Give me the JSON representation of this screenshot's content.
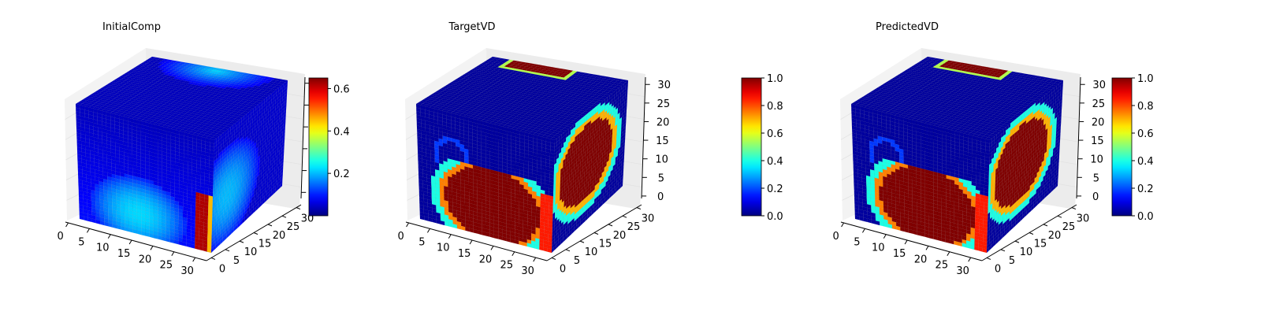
{
  "chart_data": [
    {
      "type": "voxel-3d",
      "title": "InitialComp",
      "xticks": [
        "0",
        "5",
        "10",
        "15",
        "20",
        "25",
        "30"
      ],
      "yticks": [
        "0",
        "5",
        "10",
        "15",
        "20",
        "25",
        "30"
      ],
      "colorbar": {
        "min": 0.0,
        "max": 0.65,
        "ticks": [
          "0.2",
          "0.4",
          "0.6"
        ],
        "tick_values": [
          0.2,
          0.4,
          0.6
        ],
        "colormap": "jet"
      },
      "features": [
        {
          "face": "front",
          "kind": "blob",
          "u": 0.45,
          "v": 0.78,
          "r": 0.35,
          "value": 0.22
        },
        {
          "face": "front",
          "kind": "strip",
          "u": 0.93,
          "v": 0.75,
          "w": 0.06,
          "h": 0.45,
          "value": 0.62
        },
        {
          "face": "top",
          "kind": "blob",
          "u": 0.55,
          "v": 0.12,
          "r": 0.25,
          "value": 0.22
        },
        {
          "face": "side",
          "kind": "blob",
          "u": 0.25,
          "v": 0.6,
          "r": 0.35,
          "value": 0.2
        }
      ]
    },
    {
      "type": "voxel-3d",
      "title": "TargetVD",
      "xticks": [
        "0",
        "5",
        "10",
        "15",
        "20",
        "25",
        "30"
      ],
      "yticks": [
        "0",
        "5",
        "10",
        "15",
        "20",
        "25",
        "30"
      ],
      "zticks": [
        "0",
        "5",
        "10",
        "15",
        "20",
        "25",
        "30"
      ],
      "colorbar": {
        "min": 0.0,
        "max": 1.0,
        "ticks": [
          "0.0",
          "0.2",
          "0.4",
          "0.6",
          "0.8",
          "1.0"
        ],
        "tick_values": [
          0,
          0.2,
          0.4,
          0.6,
          0.8,
          1.0
        ],
        "colormap": "jet"
      },
      "features": [
        {
          "face": "front",
          "kind": "heart",
          "value": 1.0
        },
        {
          "face": "side",
          "kind": "leaf",
          "value": 1.0
        },
        {
          "face": "top",
          "kind": "bar",
          "value": 1.0
        }
      ]
    },
    {
      "type": "voxel-3d",
      "title": "PredictedVD",
      "xticks": [
        "0",
        "5",
        "10",
        "15",
        "20",
        "25",
        "30"
      ],
      "yticks": [
        "0",
        "5",
        "10",
        "15",
        "20",
        "25",
        "30"
      ],
      "zticks": [
        "0",
        "5",
        "10",
        "15",
        "20",
        "25",
        "30"
      ],
      "colorbar": {
        "min": 0.0,
        "max": 1.0,
        "ticks": [
          "0.0",
          "0.2",
          "0.4",
          "0.6",
          "0.8",
          "1.0"
        ],
        "tick_values": [
          0,
          0.2,
          0.4,
          0.6,
          0.8,
          1.0
        ],
        "colormap": "jet"
      },
      "features": [
        {
          "face": "front",
          "kind": "heart",
          "value": 1.0
        },
        {
          "face": "side",
          "kind": "leaf",
          "value": 1.0
        },
        {
          "face": "top",
          "kind": "bar",
          "value": 1.0
        }
      ]
    }
  ]
}
